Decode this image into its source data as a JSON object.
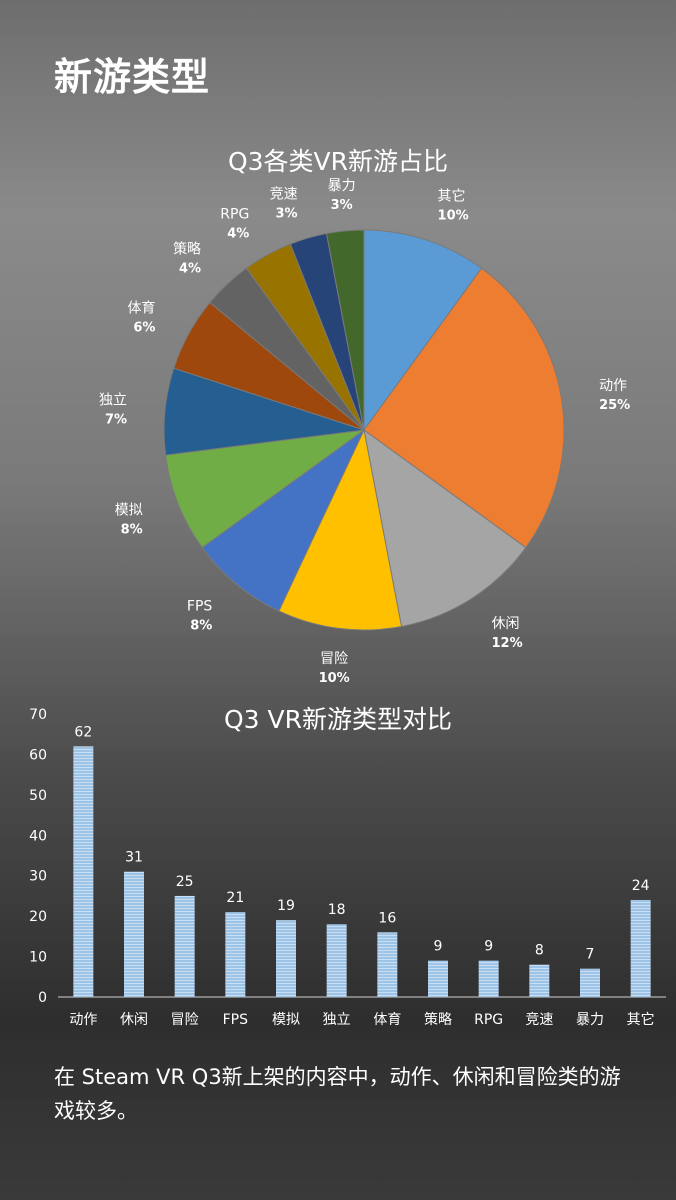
{
  "page": {
    "title": "新游类型",
    "caption": "在 Steam VR Q3新上架的内容中，动作、休闲和冒险类的游戏较多。"
  },
  "chart_data": [
    {
      "type": "pie",
      "title": "Q3各类VR新游占比",
      "slices": [
        {
          "label": "其它",
          "value": 10,
          "display": "10%",
          "color": "#5b9bd5"
        },
        {
          "label": "动作",
          "value": 25,
          "display": "25%",
          "color": "#ed7d31"
        },
        {
          "label": "休闲",
          "value": 12,
          "display": "12%",
          "color": "#a5a5a5"
        },
        {
          "label": "冒险",
          "value": 10,
          "display": "10%",
          "color": "#ffc000"
        },
        {
          "label": "FPS",
          "value": 8,
          "display": "8%",
          "color": "#4472c4"
        },
        {
          "label": "模拟",
          "value": 8,
          "display": "8%",
          "color": "#70ad47"
        },
        {
          "label": "独立",
          "value": 7,
          "display": "7%",
          "color": "#255e91"
        },
        {
          "label": "体育",
          "value": 6,
          "display": "6%",
          "color": "#9e480e"
        },
        {
          "label": "策略",
          "value": 4,
          "display": "4%",
          "color": "#636363"
        },
        {
          "label": "RPG",
          "value": 4,
          "display": "4%",
          "color": "#997300"
        },
        {
          "label": "竞速",
          "value": 3,
          "display": "3%",
          "color": "#264478"
        },
        {
          "label": "暴力",
          "value": 3,
          "display": "3%",
          "color": "#43682b"
        }
      ]
    },
    {
      "type": "bar",
      "title": "Q3 VR新游类型对比",
      "categories": [
        "动作",
        "休闲",
        "冒险",
        "FPS",
        "模拟",
        "独立",
        "体育",
        "策略",
        "RPG",
        "竞速",
        "暴力",
        "其它"
      ],
      "values": [
        62,
        31,
        25,
        21,
        19,
        18,
        16,
        9,
        9,
        8,
        7,
        24
      ],
      "ylim": [
        0,
        70
      ],
      "yticks": [
        0,
        10,
        20,
        30,
        40,
        50,
        60,
        70
      ],
      "bar_color": "#9dc3e6"
    }
  ]
}
